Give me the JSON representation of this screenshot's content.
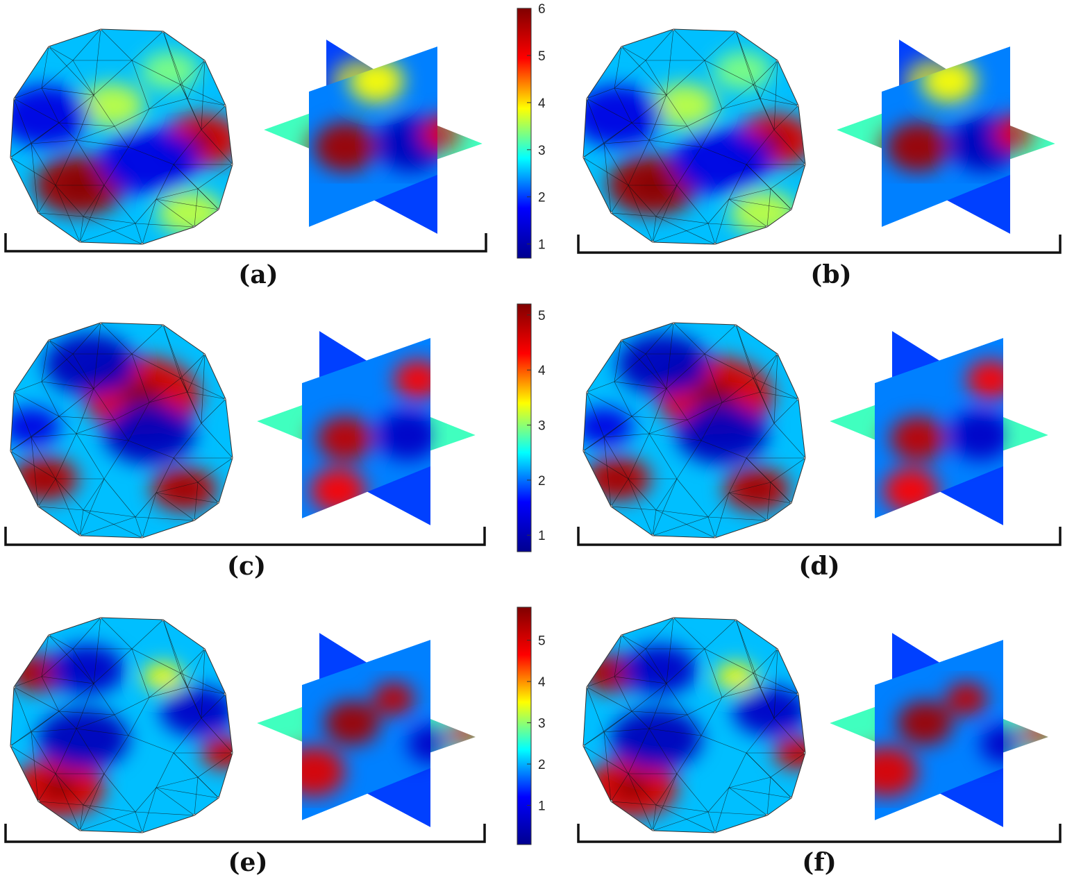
{
  "colormap": {
    "name": "jet",
    "stops": [
      "#00008f",
      "#0000ff",
      "#00ffff",
      "#ffff00",
      "#ff0000",
      "#800000"
    ]
  },
  "panels": [
    {
      "label": "(a)"
    },
    {
      "label": "(b)"
    },
    {
      "label": "(c)"
    },
    {
      "label": "(d)"
    },
    {
      "label": "(e)"
    },
    {
      "label": "(f)"
    }
  ],
  "colorbars": [
    {
      "row": 1,
      "min": 0.7,
      "max": 6.0,
      "ticks": [
        "1",
        "2",
        "3",
        "4",
        "5",
        "6"
      ]
    },
    {
      "row": 2,
      "min": 0.7,
      "max": 5.2,
      "ticks": [
        "1",
        "2",
        "3",
        "4",
        "5"
      ]
    },
    {
      "row": 3,
      "min": 0.05,
      "max": 5.8,
      "ticks": [
        "1",
        "2",
        "3",
        "4",
        "5"
      ]
    }
  ],
  "mesh_color": "#111111",
  "brace_color": "#111111"
}
